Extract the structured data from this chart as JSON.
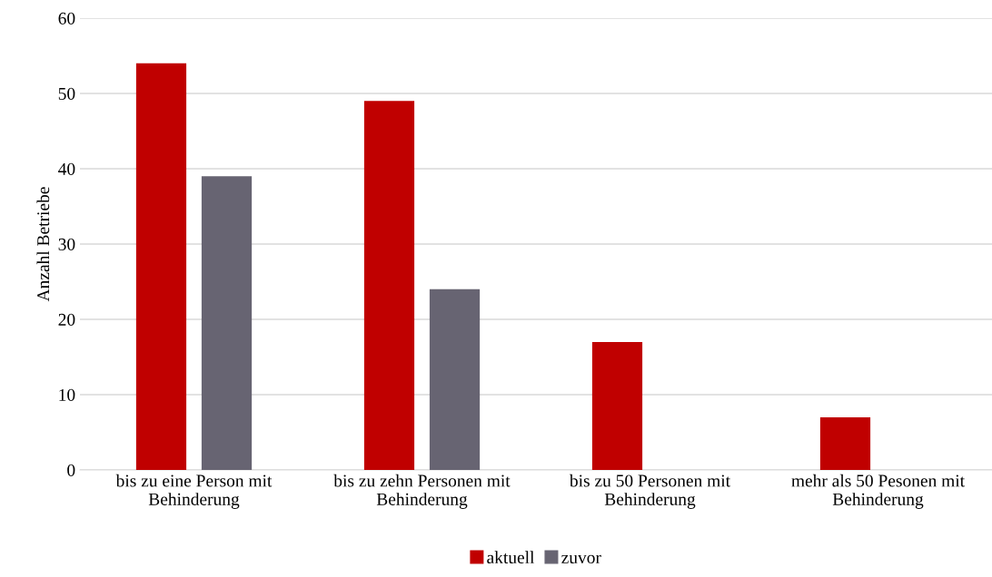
{
  "chart_data": {
    "type": "bar",
    "ylabel": "Anzahl Betriebe",
    "categories": [
      "bis zu eine Person mit\nBehinderung",
      "bis zu zehn Personen mit\nBehinderung",
      "bis zu 50 Personen mit\nBehinderung",
      "mehr als 50 Pesonen mit\nBehinderung"
    ],
    "series": [
      {
        "name": "aktuell",
        "color": "#c00000",
        "values": [
          54,
          49,
          17,
          7
        ]
      },
      {
        "name": "zuvor",
        "color": "#676472",
        "values": [
          39,
          24,
          0,
          0
        ]
      }
    ],
    "ylim": [
      0,
      60
    ],
    "yticks": [
      0,
      10,
      20,
      30,
      40,
      50,
      60
    ],
    "grid": "y",
    "legend": "bottom"
  }
}
